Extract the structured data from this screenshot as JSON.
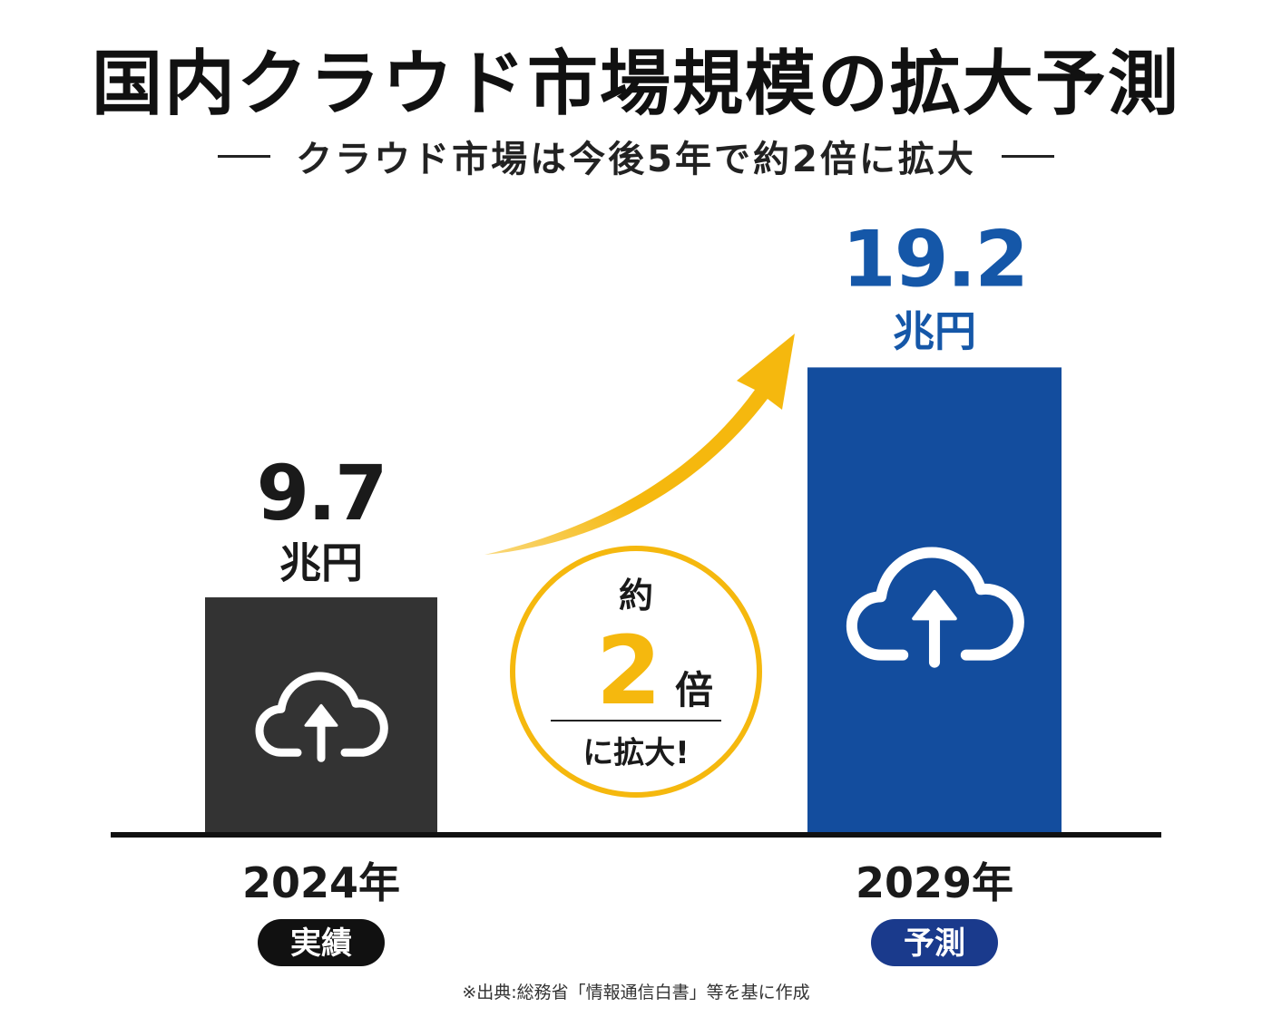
{
  "title": "国内クラウド市場規模の拡大予測",
  "subtitle": "クラウド市場は今後5年で約2倍に拡大",
  "chart_data": {
    "type": "bar",
    "categories": [
      "2024年",
      "2029年"
    ],
    "values": [
      9.7,
      19.2
    ],
    "value_labels": [
      "9.7",
      "19.2"
    ],
    "unit": "兆円",
    "badges": [
      "実績",
      "予測"
    ],
    "ylim": [
      0,
      20.3
    ],
    "grid": false,
    "colors": [
      "#333333",
      "#134d9e"
    ],
    "badge_colors": [
      "#111111",
      "#1a3a8c"
    ],
    "label_colors": [
      "#1a1a1a",
      "#1557a8"
    ],
    "icon": "cloud-upload-icon",
    "growth_callout": {
      "top": "約",
      "multiplier": "2",
      "suffix": "倍",
      "bottom": "に拡大!",
      "accent_color": "#f5b80e"
    }
  },
  "footnote": "※出典:総務省「情報通信白書」等を基に作成"
}
